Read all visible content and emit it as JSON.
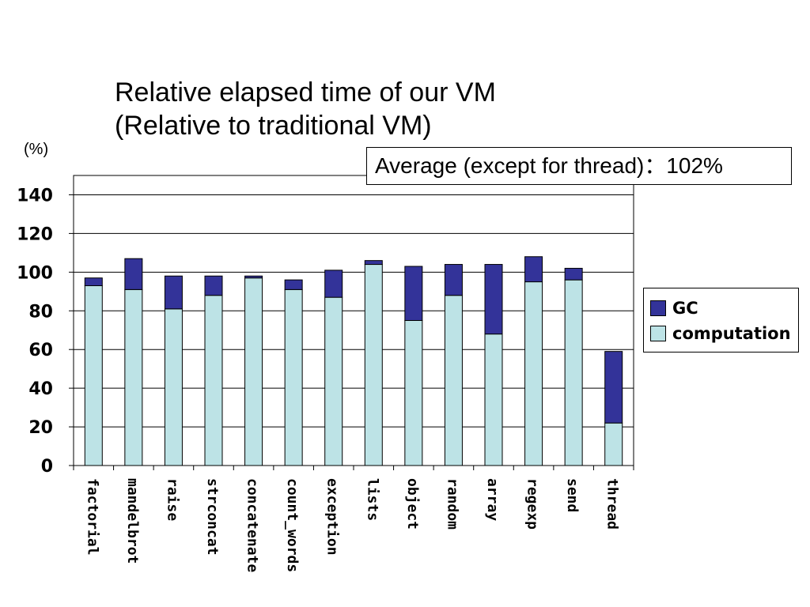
{
  "chart_data": {
    "type": "bar",
    "stacked": true,
    "title_lines": [
      "Relative elapsed time of our VM",
      "(Relative to traditional VM)"
    ],
    "ylabel": "(%)",
    "annotation": "Average (except for thread)：102%",
    "ylim": [
      0,
      150
    ],
    "yticks": [
      0,
      20,
      40,
      60,
      80,
      100,
      120,
      140
    ],
    "grid": true,
    "legend_position": "right",
    "categories": [
      "factorial",
      "mandelbrot",
      "raise",
      "strconcat",
      "concatenate",
      "count_words",
      "exception",
      "lists",
      "object",
      "random",
      "array",
      "regexp",
      "send",
      "thread"
    ],
    "series": [
      {
        "name": "computation",
        "color": "#bde3e6",
        "values": [
          93,
          91,
          81,
          88,
          97,
          91,
          87,
          104,
          75,
          88,
          68,
          95,
          96,
          22
        ]
      },
      {
        "name": "GC",
        "color": "#333399",
        "values": [
          4,
          16,
          17,
          10,
          1,
          5,
          14,
          2,
          28,
          16,
          36,
          13,
          6,
          37
        ]
      }
    ]
  }
}
